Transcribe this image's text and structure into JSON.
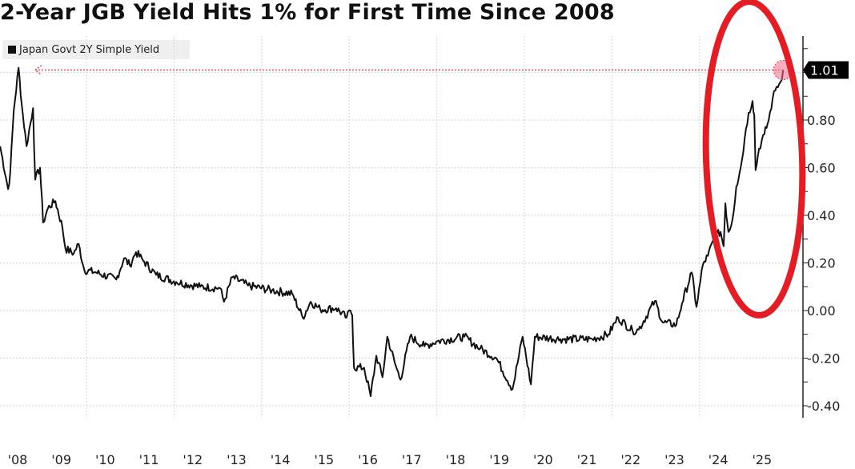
{
  "chart_data": {
    "type": "line",
    "title": "2-Year JGB Yield Hits 1% for First Time Since 2008",
    "legend": [
      "Japan Govt 2Y Simple Yield"
    ],
    "legend_position": "top-left",
    "xlabel": "",
    "ylabel": "",
    "x_tick_labels": [
      "'08",
      "'09",
      "'10",
      "'11",
      "'12",
      "'13",
      "'14",
      "'15",
      "'16",
      "'17",
      "'18",
      "'19",
      "'20",
      "'21",
      "'22",
      "'23",
      "'24",
      "'25"
    ],
    "y_tick_labels": [
      "0.80",
      "0.60",
      "0.40",
      "0.20",
      "0.00",
      "-0.20",
      "-0.40"
    ],
    "y_ticks": [
      0.8,
      0.6,
      0.4,
      0.2,
      0.0,
      -0.2,
      -0.4
    ],
    "ylim": [
      -0.45,
      1.15
    ],
    "xlim": [
      2008.0,
      2026.3
    ],
    "y_axis_side": "right",
    "grid": true,
    "last_value_label": "1.01",
    "last_value": 1.01,
    "line_color": "#111111",
    "highlight_color": "#e8304a",
    "series": [
      {
        "name": "Japan Govt 2Y Simple Yield",
        "x": [
          2008.03,
          2008.21,
          2008.26,
          2008.34,
          2008.45,
          2008.52,
          2008.63,
          2008.78,
          2008.83,
          2008.94,
          2009.01,
          2009.12,
          2009.29,
          2009.45,
          2009.52,
          2009.71,
          2009.82,
          2009.95,
          2010.22,
          2010.68,
          2010.86,
          2010.99,
          2011.13,
          2011.32,
          2011.59,
          2012.05,
          2012.6,
          2013.05,
          2013.14,
          2013.33,
          2013.69,
          2014.24,
          2014.7,
          2014.94,
          2015.12,
          2015.34,
          2015.7,
          2015.94,
          2016.03,
          2016.07,
          2016.11,
          2016.34,
          2016.49,
          2016.62,
          2016.76,
          2016.87,
          2017.04,
          2017.17,
          2017.39,
          2017.72,
          2017.99,
          2018.63,
          2018.99,
          2019.36,
          2019.73,
          2019.96,
          2020.15,
          2020.24,
          2020.82,
          2021.55,
          2021.92,
          2022.14,
          2022.47,
          2022.61,
          2022.98,
          2023.16,
          2023.47,
          2023.6,
          2023.82,
          2023.93,
          2024.08,
          2024.19,
          2024.35,
          2024.48,
          2024.55,
          2024.59,
          2024.66,
          2024.75,
          2024.84,
          2024.94,
          2025.03,
          2025.12,
          2025.21,
          2025.25,
          2025.28,
          2025.36,
          2025.48,
          2025.58,
          2025.67,
          2025.76,
          2025.85,
          2025.91
        ],
        "values": [
          0.69,
          0.51,
          0.58,
          0.84,
          1.02,
          0.87,
          0.69,
          0.85,
          0.55,
          0.6,
          0.37,
          0.43,
          0.46,
          0.35,
          0.26,
          0.24,
          0.28,
          0.17,
          0.16,
          0.13,
          0.22,
          0.19,
          0.245,
          0.205,
          0.15,
          0.12,
          0.1,
          0.094,
          0.037,
          0.14,
          0.105,
          0.085,
          0.07,
          -0.03,
          0.037,
          0.005,
          0.01,
          -0.03,
          0.0,
          -0.02,
          -0.24,
          -0.24,
          -0.36,
          -0.19,
          -0.28,
          -0.11,
          -0.22,
          -0.29,
          -0.11,
          -0.15,
          -0.13,
          -0.11,
          -0.16,
          -0.2,
          -0.33,
          -0.11,
          -0.31,
          -0.11,
          -0.12,
          -0.12,
          -0.1,
          -0.03,
          -0.085,
          -0.08,
          0.04,
          -0.05,
          -0.06,
          0.03,
          0.16,
          0.015,
          0.195,
          0.23,
          0.31,
          0.33,
          0.27,
          0.45,
          0.33,
          0.38,
          0.52,
          0.6,
          0.72,
          0.83,
          0.88,
          0.82,
          0.59,
          0.68,
          0.74,
          0.8,
          0.89,
          0.94,
          0.96,
          1.01
        ]
      }
    ]
  }
}
